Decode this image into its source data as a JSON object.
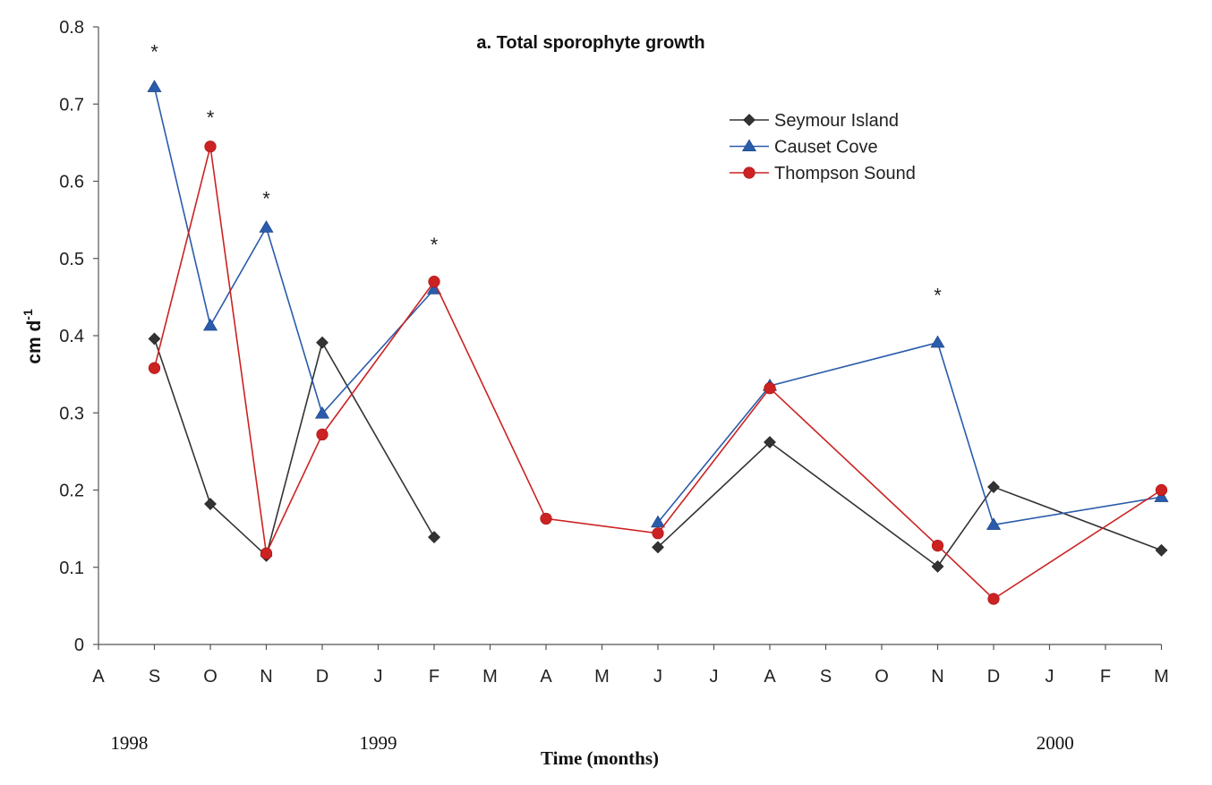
{
  "chart_data": {
    "type": "line",
    "title": "a. Total sporophyte growth",
    "xlabel": "Time (months)",
    "ylabel": "cm d",
    "ylabel_superscript": "-1",
    "ylim": [
      0,
      0.8
    ],
    "yticks": [
      "0",
      "0.1",
      "0.2",
      "0.3",
      "0.4",
      "0.5",
      "0.6",
      "0.7",
      "0.8"
    ],
    "categories": [
      "A",
      "S",
      "O",
      "N",
      "D",
      "J",
      "F",
      "M",
      "A",
      "M",
      "J",
      "J",
      "A",
      "S",
      "O",
      "N",
      "D",
      "J",
      "F",
      "M"
    ],
    "year_labels": [
      {
        "text": "1998",
        "at_index": 0.55
      },
      {
        "text": "1999",
        "at_index": 5.0
      },
      {
        "text": "2000",
        "at_index": 17.1
      }
    ],
    "legend_position": "top-right",
    "grid": false,
    "series": [
      {
        "name": "Seymour Island",
        "color": "#333333",
        "marker": "diamond",
        "points": [
          [
            1,
            0.396
          ],
          [
            2,
            0.182
          ],
          [
            3,
            0.115
          ],
          [
            4,
            0.391
          ],
          [
            6,
            0.139
          ],
          null,
          [
            10,
            0.126
          ],
          [
            12,
            0.262
          ],
          [
            15,
            0.101
          ],
          [
            16,
            0.204
          ],
          [
            19,
            0.122
          ]
        ]
      },
      {
        "name": "Causet Cove",
        "color": "#2a5cab",
        "marker": "triangle",
        "points": [
          [
            1,
            0.722
          ],
          [
            2,
            0.413
          ],
          [
            3,
            0.54
          ],
          [
            4,
            0.299
          ],
          [
            6,
            0.46
          ],
          null,
          [
            10,
            0.158
          ],
          [
            12,
            0.335
          ],
          [
            15,
            0.391
          ],
          [
            16,
            0.155
          ],
          [
            19,
            0.191
          ]
        ]
      },
      {
        "name": "Thompson Sound",
        "color": "#cc2222",
        "marker": "circle",
        "points": [
          [
            1,
            0.358
          ],
          [
            2,
            0.645
          ],
          [
            3,
            0.118
          ],
          [
            4,
            0.272
          ],
          [
            6,
            0.47
          ],
          [
            8,
            0.163
          ],
          [
            10,
            0.144
          ],
          [
            12,
            0.332
          ],
          [
            15,
            0.128
          ],
          [
            16,
            0.059
          ],
          [
            19,
            0.2
          ]
        ]
      }
    ],
    "annotations": [
      {
        "text": "*",
        "x": 1,
        "y": 0.775
      },
      {
        "text": "*",
        "x": 2,
        "y": 0.69
      },
      {
        "text": "*",
        "x": 3,
        "y": 0.585
      },
      {
        "text": "*",
        "x": 6,
        "y": 0.525
      },
      {
        "text": "*",
        "x": 15,
        "y": 0.46
      }
    ]
  }
}
